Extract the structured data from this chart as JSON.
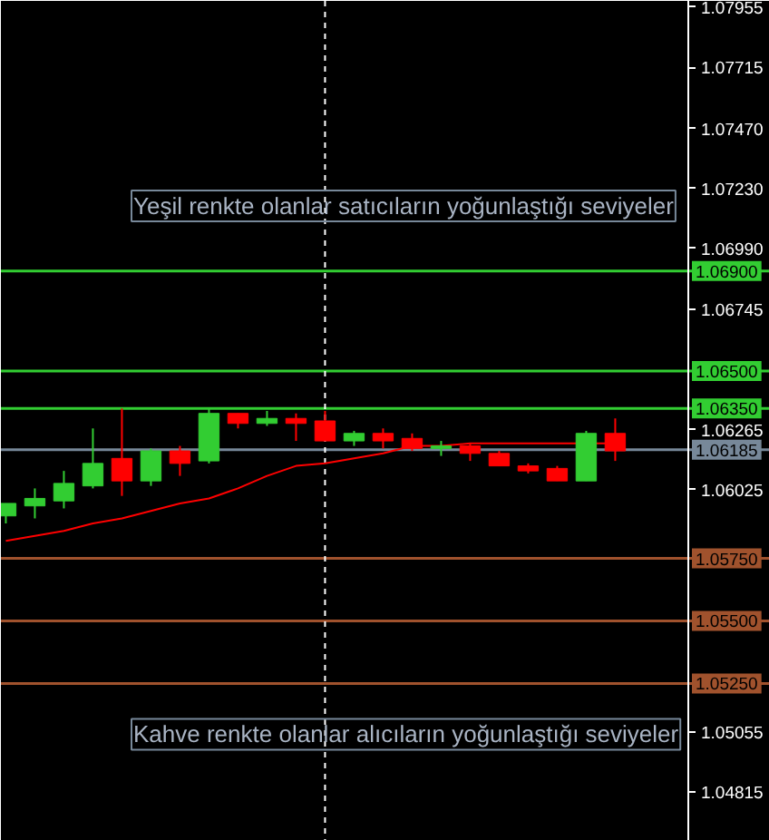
{
  "chart_data": {
    "type": "candlestick",
    "categories": [
      null,
      null,
      null,
      null,
      null,
      null,
      null,
      null,
      null,
      null,
      null,
      null,
      null,
      null,
      null,
      null,
      null,
      null,
      null,
      null,
      null,
      null
    ],
    "ohlc": [
      [
        1.0592,
        1.0597,
        1.0589,
        1.0597
      ],
      [
        1.0596,
        1.0603,
        1.0591,
        1.0599
      ],
      [
        1.0598,
        1.061,
        1.0595,
        1.0605
      ],
      [
        1.0604,
        1.0627,
        1.0603,
        1.0613
      ],
      [
        1.0615,
        1.0635,
        1.06,
        1.0606
      ],
      [
        1.0606,
        1.0619,
        1.0604,
        1.0618
      ],
      [
        1.0618,
        1.062,
        1.0608,
        1.0613
      ],
      [
        1.0614,
        1.0635,
        1.0613,
        1.0633
      ],
      [
        1.0633,
        1.0633,
        1.0627,
        1.0629
      ],
      [
        1.0629,
        1.0634,
        1.0628,
        1.0631
      ],
      [
        1.0631,
        1.0633,
        1.0622,
        1.0629
      ],
      [
        1.063,
        1.0634,
        1.0622,
        1.0622
      ],
      [
        1.0622,
        1.0626,
        1.062,
        1.0625
      ],
      [
        1.0625,
        1.0627,
        1.0619,
        1.0622
      ],
      [
        1.0623,
        1.0625,
        1.0618,
        1.0619
      ],
      [
        1.0619,
        1.0622,
        1.0616,
        1.062
      ],
      [
        1.062,
        1.0621,
        1.0614,
        1.0617
      ],
      [
        1.0617,
        1.0618,
        1.0612,
        1.0612
      ],
      [
        1.0612,
        1.0613,
        1.0609,
        1.061
      ],
      [
        1.0611,
        1.0612,
        1.0606,
        1.0606
      ],
      [
        1.0606,
        1.0626,
        1.0606,
        1.0625
      ],
      [
        1.0625,
        1.0631,
        1.0614,
        1.0618
      ]
    ],
    "colors": [
      "#32cd32",
      "#32cd32",
      "#32cd32",
      "#32cd32",
      "#ff0000",
      "#32cd32",
      "#ff0000",
      "#32cd32",
      "#ff0000",
      "#32cd32",
      "#ff0000",
      "#ff0000",
      "#32cd32",
      "#ff0000",
      "#ff0000",
      "#32cd32",
      "#ff0000",
      "#ff0000",
      "#ff0000",
      "#ff0000",
      "#32cd32",
      "#ff0000"
    ],
    "series": [
      {
        "type": "line",
        "color": "#ff0000",
        "values": [
          1.0582,
          1.0584,
          1.0586,
          1.0589,
          1.0591,
          1.0594,
          1.0597,
          1.0599,
          1.0603,
          1.0608,
          1.0612,
          1.0613,
          1.0615,
          1.0617,
          1.062,
          1.062,
          1.0621,
          1.0621,
          1.0621,
          1.0621,
          null,
          1.0621
        ]
      }
    ],
    "ylim": [
      1.0462,
      1.0798
    ],
    "yticks": [
      1.07955,
      1.07715,
      {
        "value": 1.0747,
        "label": "1.07470"
      },
      {
        "value": 1.0723,
        "label": "1.07230"
      },
      {
        "value": 1.0699,
        "label": "1.06990"
      },
      1.06745,
      1.06265,
      1.06025,
      1.05055,
      1.04815
    ],
    "ref_lines": [
      {
        "axis": "y",
        "value": 1.069,
        "label": "1.06900",
        "color": "#32cd32"
      },
      {
        "axis": "y",
        "value": 1.065,
        "label": "1.06500",
        "color": "#32cd32"
      },
      {
        "axis": "y",
        "value": 1.0635,
        "label": "1.06350",
        "color": "#32cd32"
      },
      {
        "axis": "y",
        "value": 1.06185,
        "label": "1.06185",
        "color": "#778899"
      },
      {
        "axis": "y",
        "value": 1.0575,
        "label": "1.05750",
        "color": "#a0522d"
      },
      {
        "axis": "y",
        "value": 1.055,
        "label": "1.05500",
        "color": "#a0522d"
      },
      {
        "axis": "y",
        "value": 1.0525,
        "label": "1.05250",
        "color": "#a0522d"
      }
    ],
    "annotations": [
      "Yeşil renkte olanlar satıcıların yoğunlaştığı seviyeler",
      "Kahve renkte olanlar alıcıların yoğunlaştığı seviyeler"
    ],
    "tick_labels": "y",
    "grid": false
  }
}
